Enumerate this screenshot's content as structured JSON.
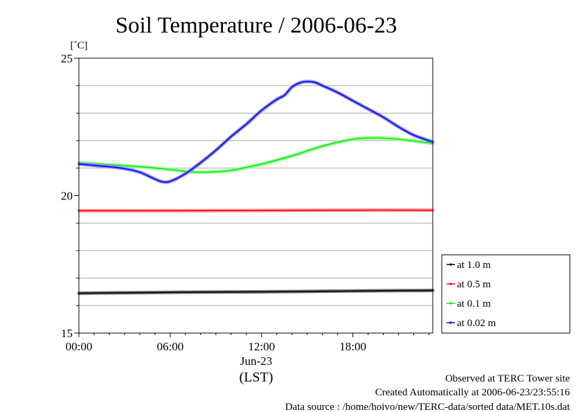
{
  "chart_data": {
    "type": "line",
    "title": "Soil Temperature / 2006-06-23",
    "ylabel": "[˚C]",
    "xlabel": "(LST)",
    "date_label": "Jun-23",
    "ylim": [
      15,
      25
    ],
    "xlim": [
      0,
      23.25
    ],
    "yticks": [
      {
        "value": 15,
        "label": "15"
      },
      {
        "value": 20,
        "label": "20"
      },
      {
        "value": 25,
        "label": "25"
      }
    ],
    "ygrid": [
      16,
      17,
      18,
      19,
      21,
      22,
      23,
      24
    ],
    "xticks": [
      {
        "value": 0,
        "label": "00:00"
      },
      {
        "value": 6,
        "label": "06:00"
      },
      {
        "value": 12,
        "label": "12:00"
      },
      {
        "value": 18,
        "label": "18:00"
      }
    ],
    "grid": "horizontal",
    "legend_position": "right",
    "series": [
      {
        "name": "at 1.0 m",
        "color": "#000000",
        "x": [
          0,
          4,
          8,
          12,
          16,
          20,
          23.25
        ],
        "y": [
          16.45,
          16.47,
          16.49,
          16.5,
          16.52,
          16.54,
          16.55
        ]
      },
      {
        "name": "at 0.5 m",
        "color": "#ff0000",
        "x": [
          0,
          6,
          12,
          18,
          23.25
        ],
        "y": [
          19.45,
          19.45,
          19.46,
          19.47,
          19.47
        ]
      },
      {
        "name": "at 0.1 m",
        "color": "#00ee00",
        "x": [
          0,
          2,
          4,
          6,
          7,
          8,
          9,
          10,
          12,
          14,
          16,
          18,
          19.5,
          21,
          23.25
        ],
        "y": [
          21.2,
          21.12,
          21.05,
          20.95,
          20.88,
          20.85,
          20.87,
          20.92,
          21.15,
          21.45,
          21.8,
          22.05,
          22.1,
          22.05,
          21.9
        ]
      },
      {
        "name": "at 0.02 m",
        "color": "#0000ff",
        "x": [
          0,
          1,
          2,
          3,
          4,
          5,
          5.5,
          6,
          7,
          8,
          9,
          10,
          11,
          12,
          13,
          13.5,
          14,
          14.5,
          15,
          15.5,
          16,
          17,
          18,
          19,
          20,
          21,
          22,
          23.25
        ],
        "y": [
          21.15,
          21.1,
          21.05,
          20.98,
          20.85,
          20.6,
          20.5,
          20.52,
          20.8,
          21.2,
          21.65,
          22.15,
          22.6,
          23.1,
          23.5,
          23.65,
          23.95,
          24.1,
          24.15,
          24.12,
          24.0,
          23.75,
          23.45,
          23.15,
          22.85,
          22.5,
          22.2,
          21.95
        ]
      }
    ]
  },
  "footer": {
    "site": "Observed at TERC Tower site",
    "created": "Created Automatically at 2006-06-23/23:55:16",
    "source": "Data source : /home/hoivo/new/TERC-data/sorted  data/MET.10s.dat"
  }
}
